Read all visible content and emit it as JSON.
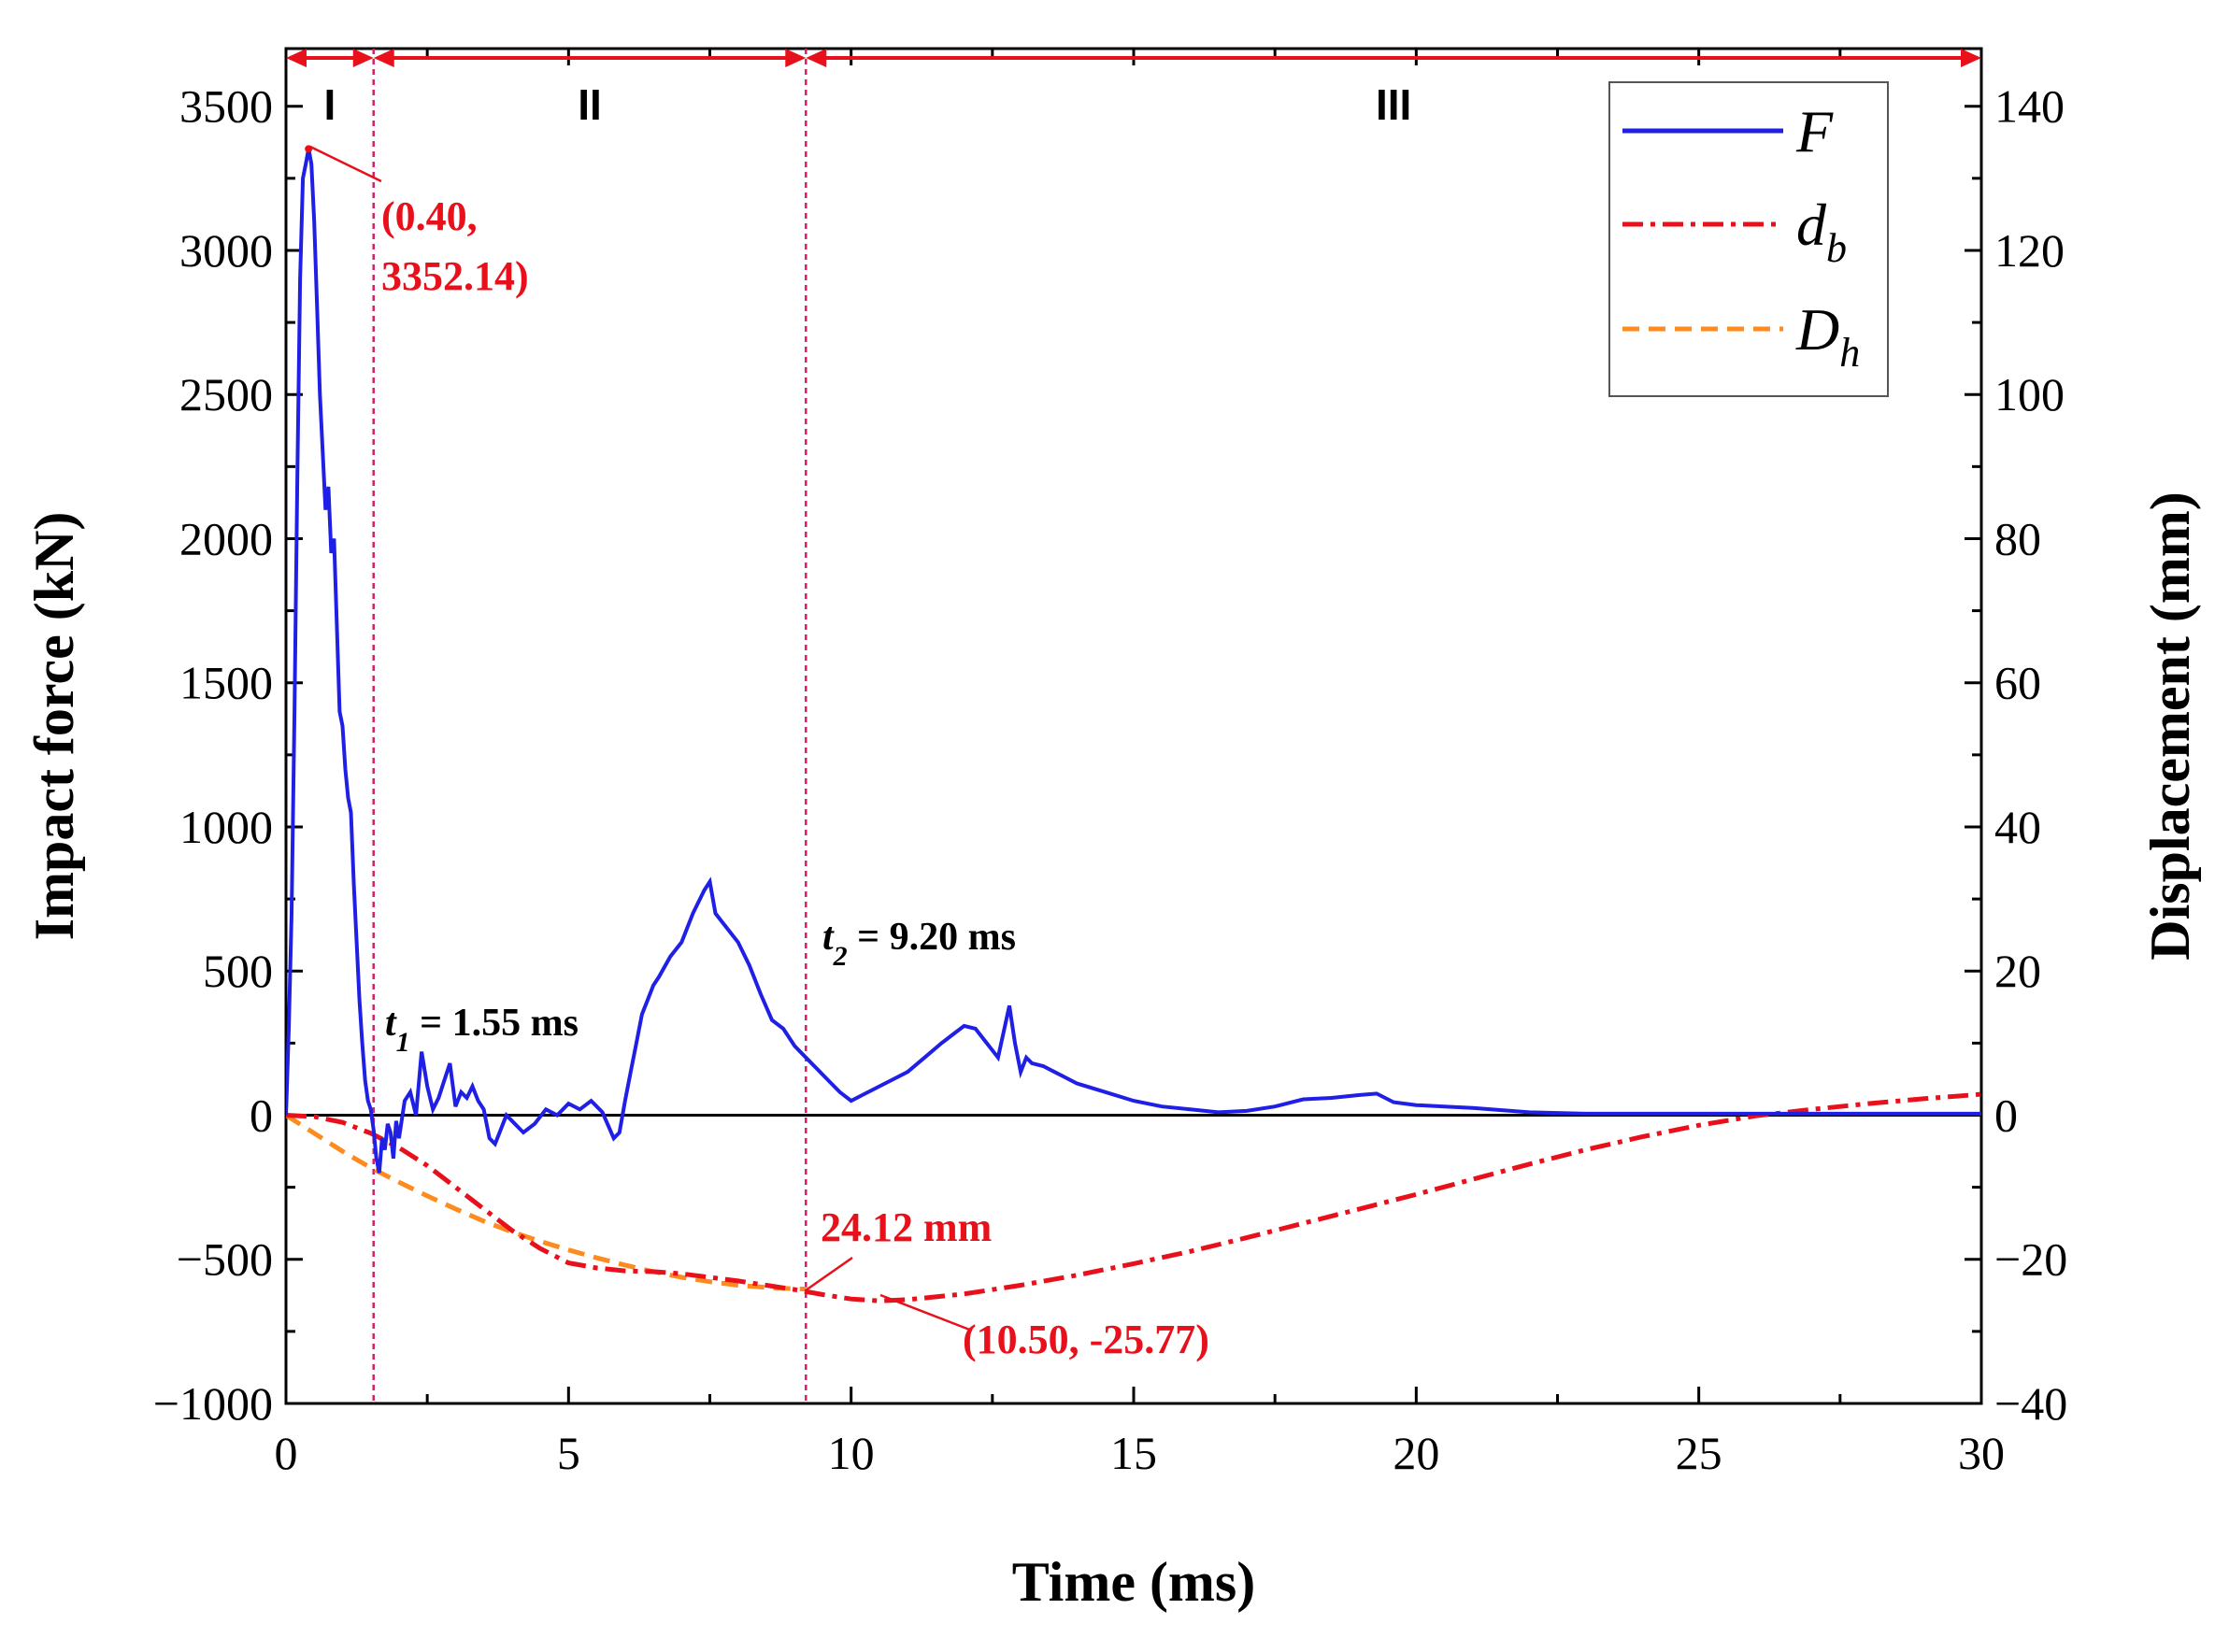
{
  "chart_data": {
    "type": "line",
    "xlabel": "Time (ms)",
    "ylabel_left": "Impact force (kN)",
    "ylabel_right": "Displacement (mm)",
    "xlim": [
      0,
      30
    ],
    "ylim_left": [
      -1000,
      3700
    ],
    "ylim_right": [
      -40,
      148
    ],
    "x_ticks": [
      "0",
      "5",
      "10",
      "15",
      "20",
      "25",
      "30"
    ],
    "x_tick_values": [
      0,
      5,
      10,
      15,
      20,
      25,
      30
    ],
    "y_left_ticks": [
      "−1000",
      "−500",
      "0",
      "500",
      "1000",
      "1500",
      "2000",
      "2500",
      "3000",
      "3500"
    ],
    "y_left_tick_values": [
      -1000,
      -500,
      0,
      500,
      1000,
      1500,
      2000,
      2500,
      3000,
      3500
    ],
    "y_right_ticks": [
      "−40",
      "−20",
      "0",
      "20",
      "40",
      "60",
      "80",
      "100",
      "120",
      "140"
    ],
    "y_right_tick_values": [
      -40,
      -20,
      0,
      20,
      40,
      60,
      80,
      100,
      120,
      140
    ],
    "phases": [
      {
        "label": "I",
        "start": 0,
        "end": 1.55
      },
      {
        "label": "II",
        "start": 1.55,
        "end": 9.2
      },
      {
        "label": "III",
        "start": 9.2,
        "end": 30
      }
    ],
    "vlines": [
      1.55,
      9.2
    ],
    "series": [
      {
        "name": "F",
        "axis": "left",
        "color": "#1f1fe6",
        "style": "solid",
        "x": [
          0,
          0.05,
          0.1,
          0.15,
          0.2,
          0.25,
          0.3,
          0.35,
          0.4,
          0.45,
          0.5,
          0.55,
          0.6,
          0.65,
          0.7,
          0.75,
          0.8,
          0.85,
          0.9,
          0.95,
          1.0,
          1.05,
          1.1,
          1.15,
          1.2,
          1.25,
          1.3,
          1.35,
          1.4,
          1.45,
          1.5,
          1.55,
          1.6,
          1.65,
          1.7,
          1.75,
          1.8,
          1.85,
          1.9,
          1.95,
          2.0,
          2.1,
          2.2,
          2.3,
          2.4,
          2.5,
          2.6,
          2.7,
          2.8,
          2.9,
          3.0,
          3.1,
          3.2,
          3.3,
          3.4,
          3.5,
          3.6,
          3.7,
          3.8,
          3.9,
          4.0,
          4.2,
          4.4,
          4.6,
          4.8,
          5.0,
          5.2,
          5.4,
          5.6,
          5.8,
          5.9,
          6.0,
          6.1,
          6.2,
          6.3,
          6.4,
          6.5,
          6.6,
          6.8,
          7.0,
          7.2,
          7.4,
          7.5,
          7.6,
          7.8,
          8.0,
          8.2,
          8.4,
          8.6,
          8.8,
          9.0,
          9.2,
          9.4,
          9.6,
          9.8,
          10.0,
          10.2,
          10.5,
          10.8,
          11.0,
          11.3,
          11.6,
          12.0,
          12.2,
          12.4,
          12.6,
          12.8,
          12.9,
          13.0,
          13.1,
          13.2,
          13.4,
          13.6,
          13.8,
          14.0,
          14.5,
          15.0,
          15.5,
          16.0,
          16.5,
          17.0,
          17.5,
          18.0,
          18.5,
          19.0,
          19.3,
          19.6,
          20.0,
          20.5,
          21.0,
          22.0,
          23.0,
          24.0,
          25.0,
          26.0,
          27.0,
          28.0,
          29.0,
          30.0
        ],
        "values": [
          0,
          300,
          700,
          1400,
          2200,
          2900,
          3250,
          3300,
          3352.14,
          3300,
          3100,
          2800,
          2500,
          2300,
          2100,
          2180,
          1950,
          2000,
          1700,
          1400,
          1350,
          1200,
          1100,
          1050,
          800,
          600,
          400,
          250,
          120,
          50,
          20,
          -50,
          -150,
          -200,
          -80,
          -120,
          -30,
          -60,
          -150,
          -20,
          -80,
          50,
          80,
          0,
          220,
          100,
          20,
          60,
          120,
          180,
          30,
          80,
          60,
          100,
          50,
          20,
          -80,
          -100,
          -50,
          0,
          -20,
          -60,
          -30,
          20,
          0,
          40,
          20,
          50,
          10,
          -80,
          -60,
          50,
          150,
          250,
          350,
          400,
          450,
          480,
          550,
          600,
          700,
          780,
          810,
          700,
          650,
          600,
          520,
          420,
          330,
          300,
          240,
          200,
          160,
          120,
          80,
          50,
          70,
          100,
          130,
          150,
          200,
          250,
          310,
          300,
          250,
          200,
          380,
          250,
          150,
          200,
          180,
          170,
          150,
          130,
          110,
          80,
          50,
          30,
          20,
          10,
          15,
          30,
          55,
          60,
          70,
          75,
          45,
          35,
          30,
          25,
          10,
          5,
          5,
          5,
          5,
          5,
          5,
          5,
          5
        ]
      },
      {
        "name": "d_b",
        "label": "d",
        "label_sub": "b",
        "axis": "right",
        "color": "#e8101a",
        "style": "dashdot",
        "x": [
          0,
          0.5,
          1.0,
          1.5,
          2.0,
          2.5,
          3.0,
          3.5,
          4.0,
          4.5,
          5.0,
          5.5,
          6.0,
          6.5,
          7.0,
          7.5,
          8.0,
          8.5,
          9.0,
          9.5,
          10.0,
          10.5,
          11.0,
          12.0,
          13.0,
          14.0,
          15.0,
          16.0,
          17.0,
          18.0,
          19.0,
          20.0,
          21.0,
          22.0,
          23.0,
          24.0,
          25.0,
          26.0,
          27.0,
          28.0,
          29.0,
          30.0
        ],
        "values": [
          0,
          -0.2,
          -1.0,
          -2.5,
          -4.5,
          -7.0,
          -10.0,
          -13.0,
          -16.0,
          -18.5,
          -20.5,
          -21.2,
          -21.6,
          -21.7,
          -22.0,
          -22.5,
          -23.0,
          -23.6,
          -24.2,
          -24.9,
          -25.5,
          -25.77,
          -25.6,
          -24.8,
          -23.6,
          -22.2,
          -20.6,
          -18.9,
          -17.0,
          -15.0,
          -13.0,
          -11.0,
          -8.9,
          -6.8,
          -4.8,
          -3.0,
          -1.4,
          -0.1,
          0.8,
          1.6,
          2.3,
          2.9
        ]
      },
      {
        "name": "D_h",
        "label": "D",
        "label_sub": "h",
        "axis": "right",
        "color": "#ff8a1e",
        "style": "dashed",
        "x": [
          0,
          0.5,
          1.0,
          1.5,
          2.0,
          2.5,
          3.0,
          3.5,
          4.0,
          4.5,
          5.0,
          5.5,
          6.0,
          6.5,
          7.0,
          7.5,
          8.0,
          8.5,
          9.0,
          9.2
        ],
        "values": [
          0,
          -2.5,
          -5.0,
          -7.3,
          -9.3,
          -11.2,
          -13.0,
          -14.7,
          -16.2,
          -17.5,
          -18.7,
          -19.8,
          -20.8,
          -21.7,
          -22.5,
          -23.1,
          -23.6,
          -23.9,
          -24.1,
          -24.12
        ]
      }
    ],
    "annotations": {
      "peak_line1": "(0.40,",
      "peak_line2": "3352.14)",
      "t1_var": "t",
      "t1_sub": "1",
      "t1_text": " = 1.55 ms",
      "t2_var": "t",
      "t2_sub": "2",
      "t2_text": " = 9.20 ms",
      "dh_max": "24.12 mm",
      "db_min": "(10.50, -25.77)"
    },
    "legend_position": "top-right"
  }
}
